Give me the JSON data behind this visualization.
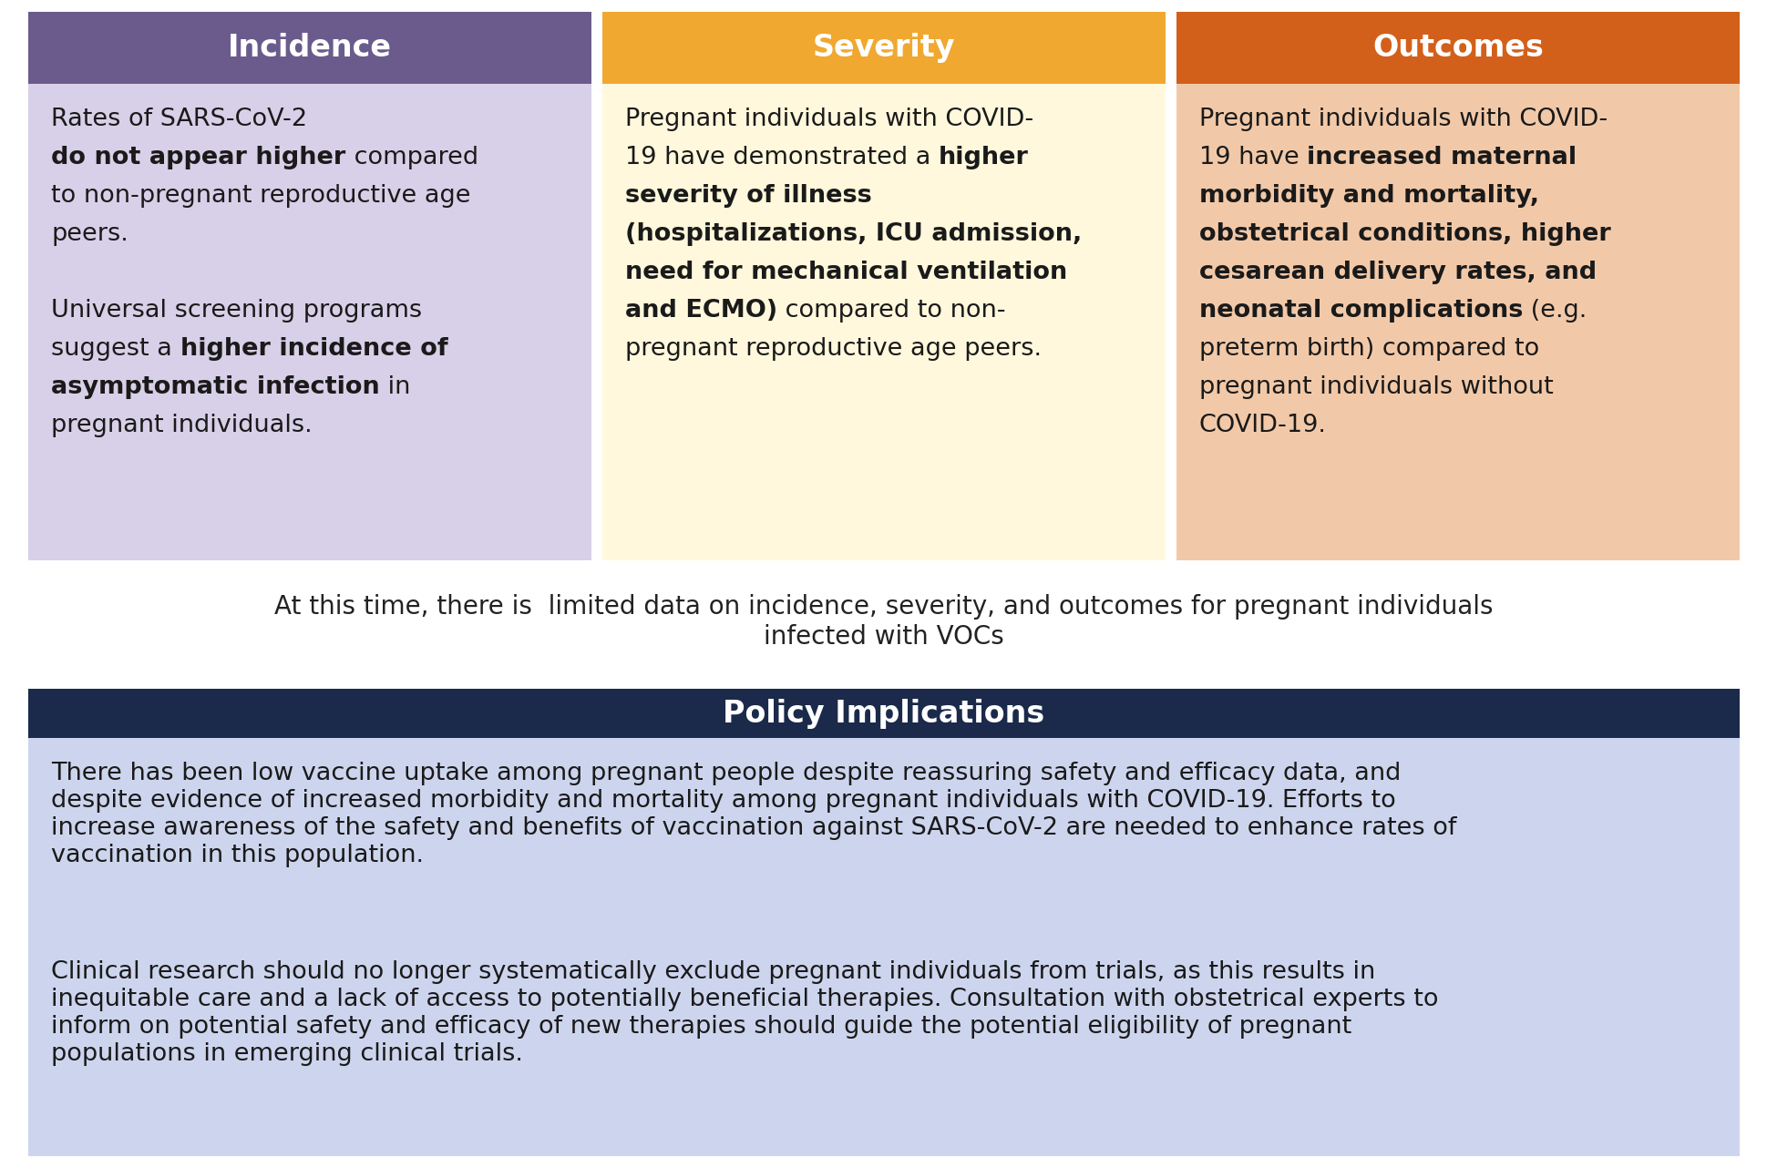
{
  "fig_width": 19.4,
  "fig_height": 12.82,
  "dpi": 100,
  "bg_color": "#ffffff",
  "col_headers": [
    "Incidence",
    "Severity",
    "Outcomes"
  ],
  "col_header_bg": [
    "#6B5B8D",
    "#F0A830",
    "#D2601A"
  ],
  "col_header_text_color": "#ffffff",
  "col_header_fontsize": 24,
  "col_body_bg": [
    "#D8D0E8",
    "#FFF8DC",
    "#F2C9A8"
  ],
  "col_body_text_color": "#1a1a1a",
  "col_body_fontsize": 19.5,
  "incidence_segments": [
    {
      "text": "Rates of SARS-CoV-2\n",
      "bold": false
    },
    {
      "text": "do not appear higher",
      "bold": true
    },
    {
      "text": " compared\nto non-pregnant reproductive age\npeers.\n\nUniversal screening programs\nsuggest a ",
      "bold": false
    },
    {
      "text": "higher incidence of\nasymptomatic infection",
      "bold": true
    },
    {
      "text": " in\npregnant individuals.",
      "bold": false
    }
  ],
  "severity_segments": [
    {
      "text": "Pregnant individuals with COVID-\n19 have demonstrated a ",
      "bold": false
    },
    {
      "text": "higher\nseverity of illness\n(hospitalizations, ICU admission,\nneed for mechanical ventilation\nand ECMO)",
      "bold": true
    },
    {
      "text": " compared to non-\npregnant reproductive age peers.",
      "bold": false
    }
  ],
  "outcomes_segments": [
    {
      "text": "Pregnant individuals with COVID-\n19 have ",
      "bold": false
    },
    {
      "text": "increased maternal\nmorbidity and mortality,\nobstetrical conditions, higher\ncesarean delivery rates, and\nneonatal complications",
      "bold": true
    },
    {
      "text": " (e.g.\npreterm birth) compared to\npregnant individuals without\nCOVID-19.",
      "bold": false
    }
  ],
  "voc_text": "At this time, there is  limited data on incidence, severity, and outcomes for pregnant individuals\ninfected with VOCs",
  "voc_bg": "#ffffff",
  "voc_fontsize": 20,
  "policy_header": "Policy Implications",
  "policy_header_bg": "#1B2A4A",
  "policy_header_text_color": "#ffffff",
  "policy_header_fontsize": 24,
  "policy_body_bg": "#CDD5EE",
  "policy_body_text_color": "#1a1a1a",
  "policy_body_fontsize": 19.5,
  "policy_para1": "There has been low vaccine uptake among pregnant people despite reassuring safety and efficacy data, and\ndespite evidence of increased morbidity and mortality among pregnant individuals with COVID-19. Efforts to\nincrease awareness of the safety and benefits of vaccination against SARS-CoV-2 are needed to enhance rates of\nvaccination in this population.",
  "policy_para2": "Clinical research should no longer systematically exclude pregnant individuals from trials, as this results in\ninequitable care and a lack of access to potentially beneficial therapies. Consultation with obstetrical experts to\ninform on potential safety and efficacy of new therapies should guide the potential eligibility of pregnant\npopulations in emerging clinical trials."
}
